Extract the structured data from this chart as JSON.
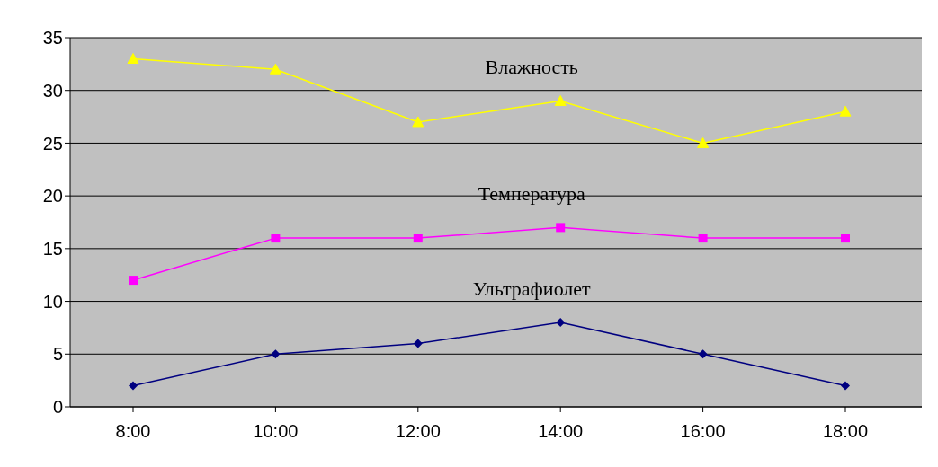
{
  "chart_data": {
    "type": "line",
    "categories": [
      "8:00",
      "10:00",
      "12:00",
      "14:00",
      "16:00",
      "18:00"
    ],
    "series": [
      {
        "name": "Влажность",
        "color": "#ffff00",
        "marker": "triangle",
        "values": [
          33,
          32,
          27,
          29,
          25,
          28
        ]
      },
      {
        "name": "Температура",
        "color": "#ff00ff",
        "marker": "square",
        "values": [
          12,
          16,
          16,
          17,
          16,
          16
        ]
      },
      {
        "name": "Ультрафиолет",
        "color": "#000080",
        "marker": "diamond",
        "values": [
          2,
          5,
          6,
          8,
          5,
          2
        ]
      }
    ],
    "ylim": [
      0,
      35
    ],
    "yticks": [
      0,
      5,
      10,
      15,
      20,
      25,
      30,
      35
    ],
    "grid": "y"
  }
}
